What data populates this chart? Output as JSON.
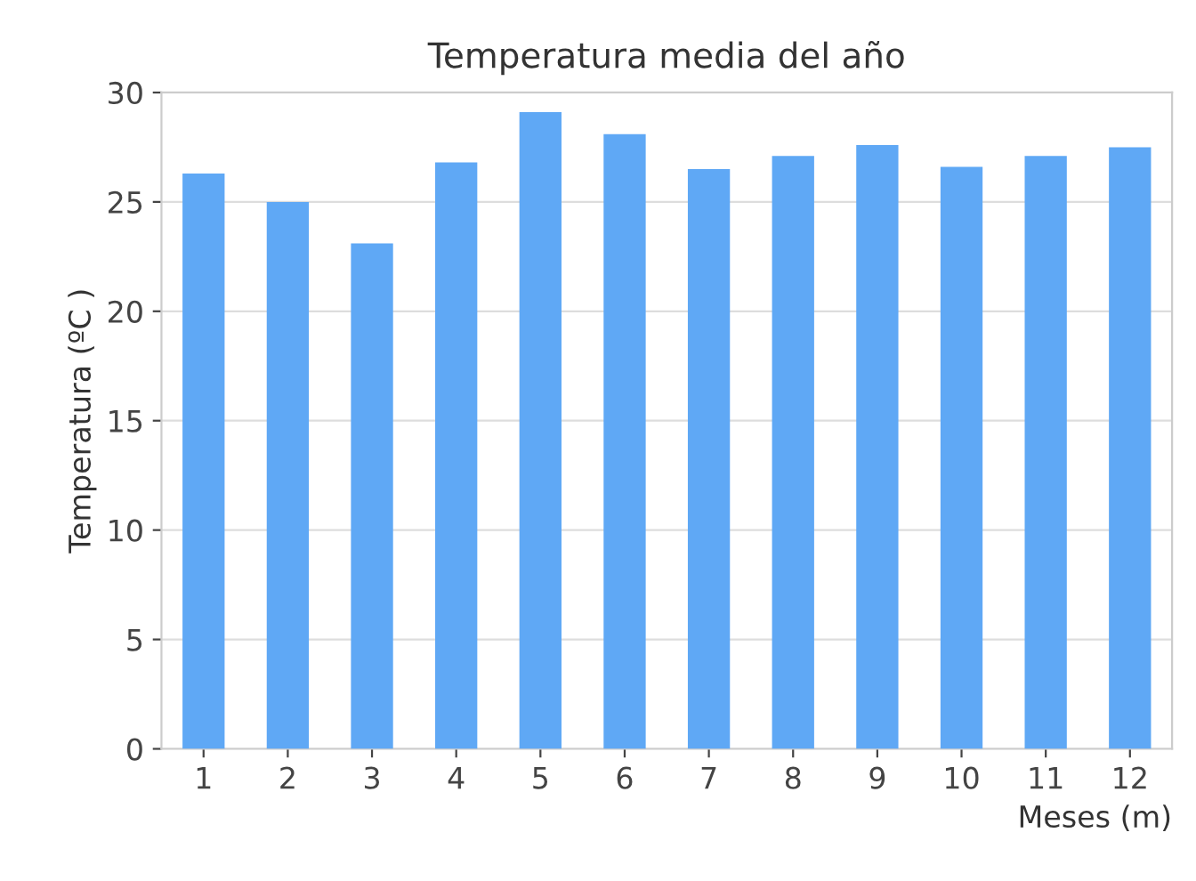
{
  "chart_data": {
    "type": "bar",
    "title": "Temperatura media del año",
    "xlabel": "Meses (m)",
    "ylabel": "Temperatura (ºC )",
    "categories": [
      "1",
      "2",
      "3",
      "4",
      "5",
      "6",
      "7",
      "8",
      "9",
      "10",
      "11",
      "12"
    ],
    "values": [
      26.3,
      25.0,
      23.1,
      26.8,
      29.1,
      28.1,
      26.5,
      27.1,
      27.6,
      26.6,
      27.1,
      27.5
    ],
    "color": "#5fa8f5",
    "ylim": [
      0,
      30
    ],
    "yticks": [
      0,
      5,
      10,
      15,
      20,
      25,
      30
    ],
    "grid": "y"
  }
}
